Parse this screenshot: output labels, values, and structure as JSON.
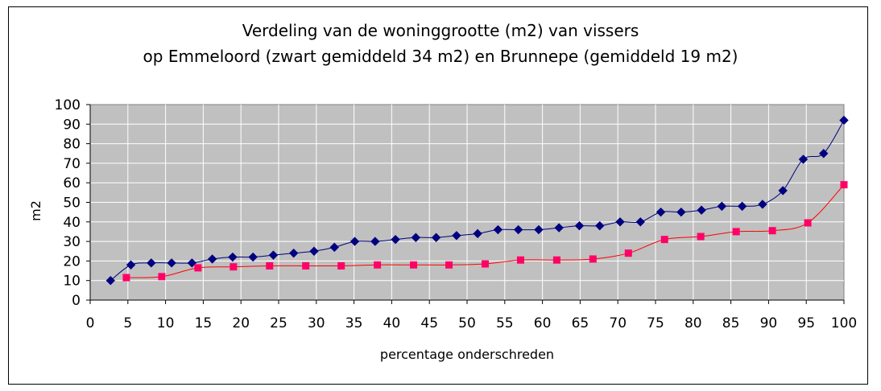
{
  "chart_data": {
    "type": "line",
    "title_lines": [
      "Verdeling van de woninggrootte (m2) van vissers",
      "op Emmeloord (zwart gemiddeld 34 m2) en Brunnepe (gemiddeld 19 m2)"
    ],
    "xlabel": "percentage onderschreden",
    "ylabel": "m2",
    "xlim": [
      0,
      100
    ],
    "ylim": [
      0,
      100
    ],
    "x_ticks": [
      "0",
      "5",
      "10",
      "15",
      "20",
      "25",
      "30",
      "35",
      "40",
      "45",
      "50",
      "55",
      "60",
      "65",
      "70",
      "75",
      "80",
      "85",
      "90",
      "95",
      "100"
    ],
    "y_ticks": [
      "0",
      "10",
      "20",
      "30",
      "40",
      "50",
      "60",
      "70",
      "80",
      "90",
      "100"
    ],
    "grid": true,
    "series": [
      {
        "color": "#000080",
        "marker": "diamond",
        "x": [
          2.7,
          5.4,
          8.1,
          10.8,
          13.5,
          16.2,
          18.9,
          21.6,
          24.3,
          27.0,
          29.7,
          32.4,
          35.1,
          37.8,
          40.5,
          43.2,
          45.9,
          48.6,
          51.4,
          54.1,
          56.8,
          59.5,
          62.2,
          64.9,
          67.6,
          70.3,
          73.0,
          75.7,
          78.4,
          81.1,
          83.8,
          86.5,
          89.2,
          91.9,
          94.6,
          97.3,
          100
        ],
        "y": [
          10,
          18,
          19,
          19,
          19,
          21,
          22,
          22,
          23,
          24,
          25,
          27,
          30,
          30,
          31,
          32,
          32,
          33,
          34,
          36,
          36,
          36,
          37,
          38,
          38,
          40,
          40,
          45,
          45,
          46,
          48,
          48,
          49,
          56,
          72,
          75,
          92
        ]
      },
      {
        "color": "#ff0000",
        "marker_color": "#ff0066",
        "marker": "square",
        "x": [
          4.8,
          9.5,
          14.3,
          19.0,
          23.8,
          28.6,
          33.3,
          38.1,
          42.9,
          47.6,
          52.4,
          57.1,
          61.9,
          66.7,
          71.4,
          76.2,
          81.0,
          85.7,
          90.5,
          95.2,
          100
        ],
        "y": [
          11.5,
          12,
          16.5,
          17,
          17.5,
          17.5,
          17.5,
          18,
          18,
          18,
          18.5,
          20.5,
          20.5,
          21,
          24,
          31,
          32.5,
          35,
          35.5,
          39.5,
          59
        ]
      }
    ]
  }
}
